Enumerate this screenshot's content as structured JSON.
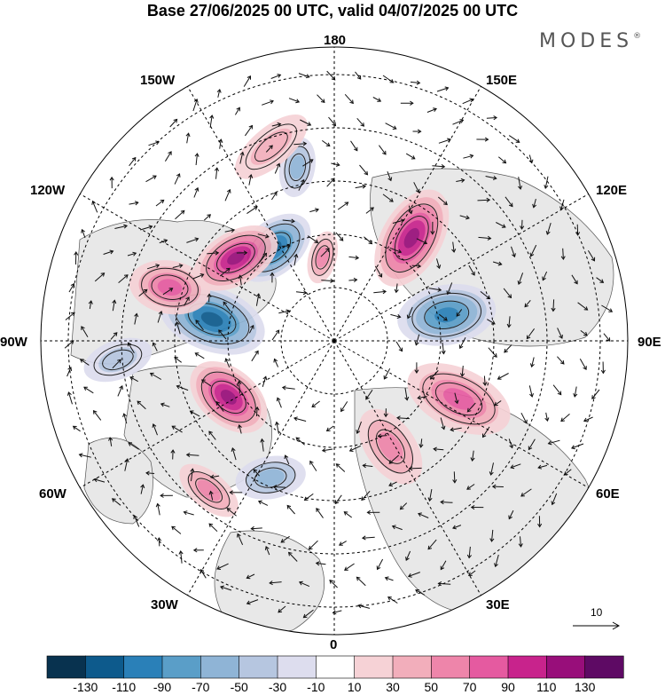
{
  "title": "Base 27/06/2025 00 UTC, valid 04/07/2025 00 UTC",
  "brand": {
    "text": "MODES",
    "mark": "®"
  },
  "longitude_labels": {
    "lon_180": "180",
    "lon_150e": "150E",
    "lon_120e": "120E",
    "lon_90e": "90E",
    "lon_60e": "60E",
    "lon_30e": "30E",
    "lon_0": "0",
    "lon_30w": "30W",
    "lon_60w": "60W",
    "lon_90w": "90W",
    "lon_120w": "120W",
    "lon_150w": "150W"
  },
  "vector_scale": {
    "label": "10"
  },
  "colorbar": {
    "colors": [
      "#08324f",
      "#0d5a8c",
      "#2a80b8",
      "#5a9ec8",
      "#8fb4d6",
      "#b6c6e0",
      "#ddddee",
      "#ffffff",
      "#f6d2d6",
      "#f2aebb",
      "#ee85aa",
      "#e55aa0",
      "#c8238c",
      "#980e7a",
      "#5e0a64"
    ],
    "labels": [
      "-130",
      "-110",
      "-90",
      "-70",
      "-50",
      "-30",
      "-10",
      "10",
      "30",
      "50",
      "70",
      "90",
      "110",
      "130"
    ]
  },
  "anomalies": [
    {
      "kind": "neg",
      "angle": -33,
      "r": 125,
      "a": 48,
      "b": 30,
      "rot": -40,
      "level": 5
    },
    {
      "kind": "pos",
      "angle": 37,
      "r": 145,
      "a": 60,
      "b": 34,
      "rot": -60,
      "level": 5
    },
    {
      "kind": "neg",
      "angle": 77,
      "r": 130,
      "a": 56,
      "b": 34,
      "rot": -10,
      "level": 4
    },
    {
      "kind": "pos",
      "angle": 115,
      "r": 155,
      "a": 62,
      "b": 34,
      "rot": 25,
      "level": 3
    },
    {
      "kind": "pos",
      "angle": 152,
      "r": 135,
      "a": 48,
      "b": 28,
      "rot": 55,
      "level": 2
    },
    {
      "kind": "pos",
      "angle": -118,
      "r": 135,
      "a": 50,
      "b": 32,
      "rot": 40,
      "level": 5
    },
    {
      "kind": "neg",
      "angle": -80,
      "r": 140,
      "a": 62,
      "b": 36,
      "rot": 20,
      "level": 5
    },
    {
      "kind": "pos",
      "angle": -72,
      "r": 195,
      "a": 46,
      "b": 30,
      "rot": 10,
      "level": 3
    },
    {
      "kind": "pos",
      "angle": -50,
      "r": 145,
      "a": 52,
      "b": 30,
      "rot": -30,
      "level": 5
    },
    {
      "kind": "pos",
      "angle": -8,
      "r": 95,
      "a": 30,
      "b": 16,
      "rot": -75,
      "level": 2
    },
    {
      "kind": "neg",
      "angle": -12,
      "r": 200,
      "a": 34,
      "b": 20,
      "rot": -80,
      "level": 2
    },
    {
      "kind": "neg",
      "angle": -155,
      "r": 170,
      "a": 40,
      "b": 24,
      "rot": -10,
      "level": 2
    },
    {
      "kind": "pos",
      "angle": -140,
      "r": 220,
      "a": 40,
      "b": 20,
      "rot": 40,
      "level": 2
    },
    {
      "kind": "pos",
      "angle": -18,
      "r": 230,
      "a": 50,
      "b": 22,
      "rot": -40,
      "level": 1
    },
    {
      "kind": "neg",
      "angle": -95,
      "r": 245,
      "a": 40,
      "b": 22,
      "rot": -20,
      "level": 1
    }
  ]
}
